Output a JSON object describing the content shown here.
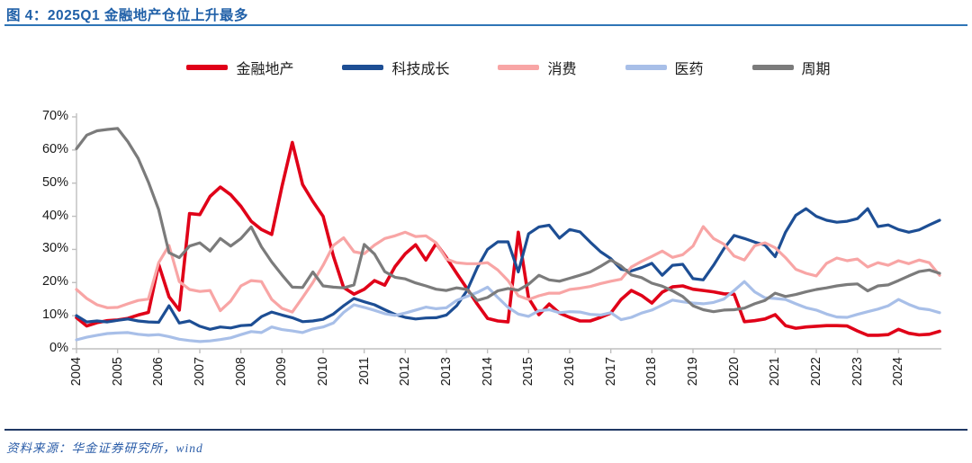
{
  "header": {
    "title": "图 4：2025Q1 金融地产仓位上升最多"
  },
  "footer": {
    "source": "资料来源：华金证券研究所，wind"
  },
  "colors": {
    "title_blue": "#2060A8",
    "top_rule_blue": "#2E75B6",
    "bottom_rule_navy": "#1F3864",
    "axis_gray": "#BFBFBF",
    "financial_red": "#E00018",
    "tech_navy": "#1D4E94",
    "consumer_pink": "#F8A5A5",
    "pharma_lightblue": "#A8BFE8",
    "cyclical_gray": "#7B7B7B"
  },
  "chart_data": {
    "type": "line",
    "title": "",
    "xlabel": "",
    "ylabel": "",
    "x_unit": "quarter",
    "x_start": "2004Q1",
    "x_end": "2025Q1",
    "ylim": [
      0,
      70
    ],
    "grid": false,
    "legend_position": "top",
    "y_tick_labels": [
      "0%",
      "10%",
      "20%",
      "30%",
      "40%",
      "50%",
      "60%",
      "70%"
    ],
    "x_tick_labels": [
      "2004",
      "2005",
      "2006",
      "2007",
      "2008",
      "2009",
      "2010",
      "2011",
      "2012",
      "2013",
      "2014",
      "2015",
      "2016",
      "2017",
      "2018",
      "2019",
      "2020",
      "2021",
      "2022",
      "2023",
      "2024"
    ],
    "series": [
      {
        "name": "金融地产",
        "color": "#E00018",
        "values": [
          9.4,
          6.9,
          7.9,
          8.5,
          8.7,
          9.2,
          10.2,
          11.0,
          25.5,
          15.7,
          11.7,
          40.8,
          40.5,
          46.0,
          48.8,
          46.5,
          43.0,
          38.5,
          36.0,
          34.5,
          49.0,
          62.3,
          49.6,
          44.5,
          40.0,
          28.0,
          18.5,
          16.5,
          18.0,
          20.6,
          19.2,
          24.8,
          28.7,
          31.4,
          26.8,
          31.8,
          27.5,
          22.8,
          18.2,
          13.5,
          9.2,
          8.4,
          8.1,
          35.2,
          15.3,
          10.3,
          13.5,
          10.8,
          9.5,
          8.4,
          8.4,
          9.5,
          10.8,
          14.9,
          17.6,
          16.1,
          13.8,
          17.1,
          18.7,
          19.0,
          18.0,
          17.6,
          17.2,
          16.6,
          16.5,
          8.2,
          8.5,
          9.0,
          10.3,
          7.0,
          6.2,
          6.6,
          6.8,
          7.0,
          7.0,
          6.9,
          5.4,
          4.1,
          4.1,
          4.3,
          5.9,
          4.7,
          4.2,
          4.4,
          5.3
        ]
      },
      {
        "name": "科技成长",
        "color": "#1D4E94",
        "values": [
          10.0,
          8.1,
          8.4,
          8.1,
          8.6,
          9.0,
          8.4,
          8.1,
          8.0,
          13.0,
          7.8,
          8.4,
          6.8,
          5.9,
          6.6,
          6.3,
          7.0,
          7.2,
          9.7,
          11.1,
          10.2,
          9.4,
          8.2,
          8.4,
          8.9,
          10.5,
          13.0,
          15.2,
          14.2,
          13.3,
          11.8,
          10.4,
          9.5,
          9.0,
          9.3,
          9.4,
          10.2,
          13.0,
          17.5,
          24.5,
          30.0,
          32.3,
          32.3,
          23.2,
          34.7,
          36.8,
          37.3,
          33.4,
          36.0,
          35.3,
          32.2,
          29.3,
          27.2,
          24.0,
          23.5,
          24.5,
          25.8,
          22.2,
          25.2,
          25.5,
          21.2,
          20.8,
          25.2,
          30.2,
          34.2,
          33.3,
          32.2,
          31.3,
          27.8,
          35.2,
          40.3,
          42.3,
          40.0,
          38.8,
          38.2,
          38.5,
          39.3,
          42.3,
          36.9,
          37.4,
          36.0,
          35.2,
          35.9,
          37.4,
          38.8
        ]
      },
      {
        "name": "消费",
        "color": "#F8A5A5",
        "values": [
          17.9,
          15.2,
          13.3,
          12.4,
          12.5,
          13.6,
          14.6,
          15.0,
          26.0,
          31.2,
          20.3,
          17.9,
          17.3,
          17.6,
          11.5,
          14.4,
          19.0,
          20.6,
          20.3,
          14.9,
          12.2,
          11.1,
          15.5,
          20.0,
          25.2,
          31.2,
          33.5,
          29.3,
          28.7,
          31.3,
          33.3,
          34.1,
          35.2,
          33.9,
          34.1,
          32.0,
          27.1,
          26.0,
          25.7,
          25.7,
          26.0,
          23.8,
          20.6,
          16.0,
          14.9,
          16.0,
          16.8,
          16.8,
          17.9,
          18.3,
          18.8,
          19.7,
          20.4,
          21.0,
          24.7,
          26.4,
          27.9,
          29.5,
          27.6,
          28.4,
          31.0,
          36.9,
          33.3,
          31.6,
          28.0,
          26.8,
          31.1,
          32.0,
          30.5,
          27.5,
          24.0,
          22.8,
          22.0,
          25.8,
          27.4,
          26.6,
          27.1,
          24.7,
          26.0,
          25.2,
          26.6,
          25.7,
          26.8,
          26.0,
          22.2
        ]
      },
      {
        "name": "医药",
        "color": "#A8BFE8",
        "values": [
          2.7,
          3.5,
          4.1,
          4.6,
          4.8,
          4.9,
          4.4,
          4.1,
          4.3,
          3.7,
          2.9,
          2.5,
          2.2,
          2.4,
          2.8,
          3.3,
          4.3,
          5.2,
          4.9,
          6.6,
          5.8,
          5.4,
          4.9,
          6.0,
          6.6,
          7.8,
          11.0,
          13.3,
          12.5,
          11.6,
          10.6,
          10.1,
          10.8,
          11.7,
          12.6,
          12.1,
          12.4,
          14.6,
          15.8,
          17.0,
          18.6,
          15.5,
          12.5,
          10.5,
          9.8,
          11.5,
          11.8,
          10.9,
          11.2,
          11.1,
          10.4,
          10.2,
          10.9,
          8.8,
          9.5,
          10.8,
          11.7,
          13.2,
          14.7,
          14.2,
          13.8,
          13.6,
          14.0,
          15.0,
          17.6,
          20.3,
          17.2,
          15.4,
          15.2,
          14.9,
          13.6,
          12.4,
          11.7,
          10.5,
          9.6,
          9.5,
          10.4,
          11.2,
          12.0,
          13.0,
          14.9,
          13.4,
          12.2,
          11.8,
          10.9
        ]
      },
      {
        "name": "周期",
        "color": "#7B7B7B",
        "values": [
          60.4,
          64.5,
          65.8,
          66.2,
          66.5,
          62.5,
          57.5,
          50.3,
          42.0,
          29.0,
          27.5,
          31.0,
          32.0,
          29.5,
          33.3,
          31.0,
          33.3,
          36.8,
          30.8,
          26.2,
          22.3,
          18.6,
          18.5,
          23.2,
          19.0,
          18.6,
          18.4,
          19.3,
          31.5,
          28.6,
          23.3,
          21.6,
          21.1,
          19.9,
          19.0,
          18.0,
          17.6,
          18.4,
          17.9,
          14.6,
          15.5,
          17.5,
          18.2,
          17.7,
          19.5,
          22.2,
          20.8,
          20.4,
          21.3,
          22.2,
          23.2,
          24.9,
          26.8,
          25.0,
          22.3,
          21.5,
          19.8,
          18.9,
          17.5,
          15.8,
          13.0,
          11.8,
          11.2,
          11.7,
          11.8,
          12.3,
          13.6,
          14.6,
          16.8,
          15.8,
          16.4,
          17.2,
          17.9,
          18.4,
          19.0,
          19.4,
          19.6,
          17.5,
          19.0,
          19.3,
          20.6,
          22.0,
          23.3,
          23.8,
          22.8
        ]
      }
    ]
  }
}
